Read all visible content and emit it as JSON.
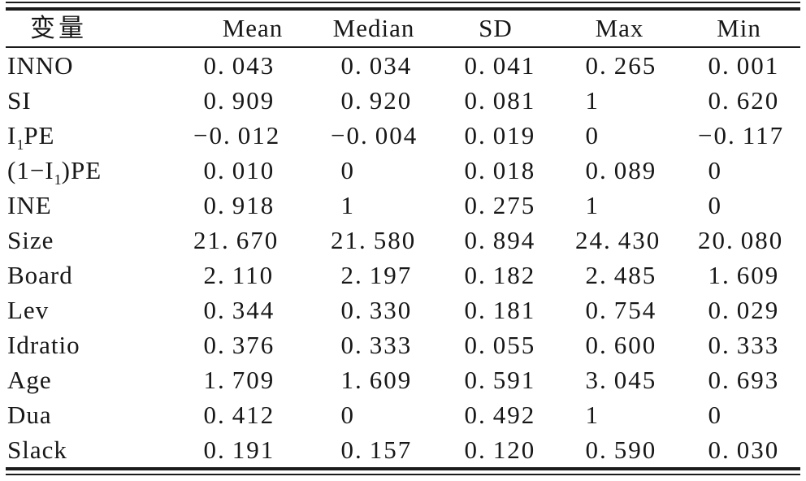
{
  "colors": {
    "ink": "#171717",
    "background": "#ffffff",
    "rule": "#1b1b1b"
  },
  "table": {
    "columns": [
      "变量",
      "Mean",
      "Median",
      "SD",
      "Max",
      "Min"
    ],
    "column_keys": [
      "variable",
      "mean",
      "median",
      "sd",
      "max",
      "min"
    ],
    "rows": [
      {
        "parts": [
          {
            "t": "INNO"
          }
        ],
        "values": [
          "0.043",
          "0.034",
          "0.041",
          "0.265",
          "0.001"
        ]
      },
      {
        "parts": [
          {
            "t": "SI"
          }
        ],
        "values": [
          "0.909",
          "0.920",
          "0.081",
          "1",
          "0.620"
        ]
      },
      {
        "parts": [
          {
            "t": "I"
          },
          {
            "t": "1",
            "sub": true
          },
          {
            "t": "PE"
          }
        ],
        "values": [
          "−0.012",
          "−0.004",
          "0.019",
          "0",
          "−0.117"
        ]
      },
      {
        "parts": [
          {
            "t": "(1−I"
          },
          {
            "t": "1",
            "sub": true
          },
          {
            "t": ")PE"
          }
        ],
        "values": [
          "0.010",
          "0",
          "0.018",
          "0.089",
          "0"
        ]
      },
      {
        "parts": [
          {
            "t": "INE"
          }
        ],
        "values": [
          "0.918",
          "1",
          "0.275",
          "1",
          "0"
        ]
      },
      {
        "parts": [
          {
            "t": "Size"
          }
        ],
        "values": [
          "21.670",
          "21.580",
          "0.894",
          "24.430",
          "20.080"
        ]
      },
      {
        "parts": [
          {
            "t": "Board"
          }
        ],
        "values": [
          "2.110",
          "2.197",
          "0.182",
          "2.485",
          "1.609"
        ]
      },
      {
        "parts": [
          {
            "t": "Lev"
          }
        ],
        "values": [
          "0.344",
          "0.330",
          "0.181",
          "0.754",
          "0.029"
        ]
      },
      {
        "parts": [
          {
            "t": "Idratio"
          }
        ],
        "values": [
          "0.376",
          "0.333",
          "0.055",
          "0.600",
          "0.333"
        ]
      },
      {
        "parts": [
          {
            "t": "Age"
          }
        ],
        "values": [
          "1.709",
          "1.609",
          "0.591",
          "3.045",
          "0.693"
        ]
      },
      {
        "parts": [
          {
            "t": "Dua"
          }
        ],
        "values": [
          "0.412",
          "0",
          "0.492",
          "1",
          "0"
        ]
      },
      {
        "parts": [
          {
            "t": "Slack"
          }
        ],
        "values": [
          "0.191",
          "0.157",
          "0.120",
          "0.590",
          "0.030"
        ]
      }
    ]
  }
}
